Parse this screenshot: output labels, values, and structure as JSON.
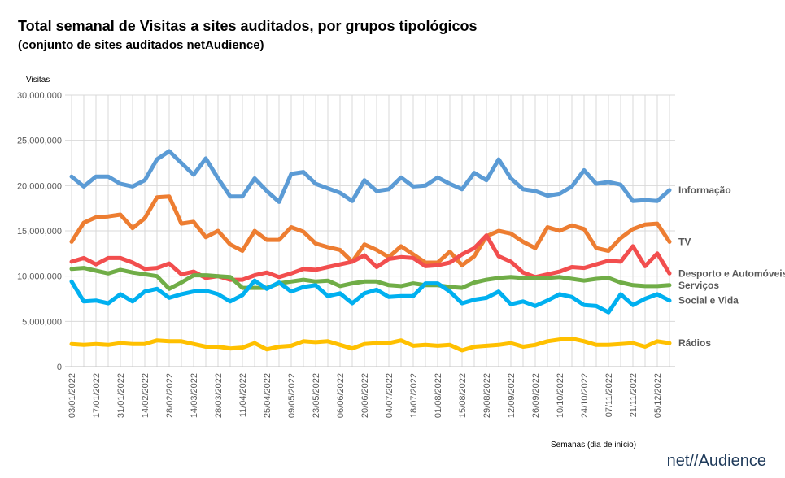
{
  "chart_data": {
    "type": "line",
    "title": "Total semanal de Visitas a sites auditados, por grupos tipológicos",
    "subtitle": "(conjunto de sites auditados netAudience)",
    "y_label": "Visitas",
    "x_label": "Semanas  (dia de início)",
    "categories": [
      "03/01/2022",
      null,
      "17/01/2022",
      null,
      "31/01/2022",
      null,
      "14/02/2022",
      null,
      "28/02/2022",
      null,
      "14/03/2022",
      null,
      "28/03/2022",
      null,
      "11/04/2022",
      null,
      "25/04/2022",
      null,
      "09/05/2022",
      null,
      "23/05/2022",
      null,
      "06/06/2022",
      null,
      "20/06/2022",
      null,
      "04/07/2022",
      null,
      "18/07/2022",
      null,
      "01/08/2022",
      null,
      "15/08/2022",
      null,
      "29/08/2022",
      null,
      "12/09/2022",
      null,
      "26/09/2022",
      null,
      "10/10/2022",
      null,
      "24/10/2022",
      null,
      "07/11/2022",
      null,
      "21/11/2022",
      null,
      "05/12/2022",
      null
    ],
    "ylim": [
      0,
      30000000
    ],
    "yticks": [
      0,
      {
        "value": 5000000,
        "label": "5,000,000"
      },
      {
        "value": 10000000,
        "label": "10,000,000"
      },
      {
        "value": 15000000,
        "label": "15,000,000"
      },
      {
        "value": 20000000,
        "label": "20,000,000"
      },
      {
        "value": 25000000,
        "label": "25,000,000"
      },
      {
        "value": 30000000,
        "label": "30,000,000"
      }
    ],
    "grid": true,
    "series": [
      {
        "name": "Informação",
        "color": "#5b9bd5",
        "label_color": "#4a86c5",
        "values": [
          21000000,
          19900000,
          21000000,
          21000000,
          20200000,
          19900000,
          20600000,
          22900000,
          23800000,
          22500000,
          21200000,
          23000000,
          20800000,
          18800000,
          18800000,
          20800000,
          19400000,
          18200000,
          21300000,
          21500000,
          20200000,
          19700000,
          19200000,
          18300000,
          20600000,
          19400000,
          19600000,
          20900000,
          19900000,
          20000000,
          20900000,
          20200000,
          19600000,
          21400000,
          20600000,
          22900000,
          20800000,
          19600000,
          19400000,
          18900000,
          19100000,
          19900000,
          21700000,
          20200000,
          20400000,
          20100000,
          18300000,
          18400000,
          18300000,
          19500000
        ]
      },
      {
        "name": "TV",
        "color": "#ed7d31",
        "label_color": "#d9692a",
        "values": [
          13800000,
          15900000,
          16500000,
          16600000,
          16800000,
          15300000,
          16400000,
          18700000,
          18800000,
          15800000,
          16000000,
          14300000,
          15000000,
          13500000,
          12800000,
          15000000,
          14000000,
          14000000,
          15400000,
          14900000,
          13600000,
          13200000,
          12900000,
          11600000,
          13500000,
          12900000,
          12100000,
          13300000,
          12400000,
          11500000,
          11500000,
          12700000,
          11200000,
          12200000,
          14400000,
          15000000,
          14700000,
          13800000,
          13100000,
          15400000,
          15000000,
          15600000,
          15200000,
          13100000,
          12800000,
          14200000,
          15200000,
          15700000,
          15800000,
          13800000
        ]
      },
      {
        "name": "Desporto e Automóveis",
        "color": "#f24e4e",
        "label_color": "#e3141c",
        "values": [
          11600000,
          12000000,
          11300000,
          12000000,
          12000000,
          11500000,
          10800000,
          10900000,
          11400000,
          10200000,
          10500000,
          9800000,
          10000000,
          9600000,
          9600000,
          10100000,
          10400000,
          9900000,
          10300000,
          10800000,
          10700000,
          11000000,
          11300000,
          11600000,
          12300000,
          11000000,
          11900000,
          12100000,
          12000000,
          11100000,
          11200000,
          11500000,
          12400000,
          13100000,
          14500000,
          12200000,
          11600000,
          10400000,
          9900000,
          10200000,
          10500000,
          11000000,
          10900000,
          11300000,
          11700000,
          11600000,
          13300000,
          11100000,
          12500000,
          10300000
        ]
      },
      {
        "name": "Serviços",
        "color": "#70ad47",
        "label_color": "#5f9e37",
        "values": [
          10800000,
          10900000,
          10600000,
          10300000,
          10700000,
          10400000,
          10200000,
          10000000,
          8600000,
          9300000,
          10100000,
          10100000,
          10000000,
          9900000,
          8700000,
          8700000,
          8700000,
          9200000,
          9400000,
          9600000,
          9400000,
          9500000,
          8900000,
          9200000,
          9400000,
          9400000,
          9000000,
          8900000,
          9200000,
          9000000,
          9000000,
          8800000,
          8700000,
          9300000,
          9600000,
          9800000,
          9900000,
          9800000,
          9800000,
          9800000,
          9900000,
          9700000,
          9500000,
          9700000,
          9800000,
          9300000,
          9000000,
          8900000,
          8900000,
          9000000
        ]
      },
      {
        "name": "Social e Vida",
        "color": "#00b0f0",
        "label_color": "#10a6dd",
        "values": [
          9400000,
          7200000,
          7300000,
          7000000,
          8000000,
          7200000,
          8300000,
          8600000,
          7600000,
          8000000,
          8300000,
          8400000,
          8000000,
          7200000,
          7900000,
          9500000,
          8600000,
          9300000,
          8300000,
          8800000,
          9000000,
          7800000,
          8100000,
          7000000,
          8100000,
          8500000,
          7700000,
          7800000,
          7800000,
          9200000,
          9200000,
          8300000,
          7000000,
          7400000,
          7600000,
          8300000,
          6900000,
          7200000,
          6700000,
          7300000,
          8000000,
          7700000,
          6800000,
          6700000,
          6000000,
          8000000,
          6800000,
          7500000,
          8000000,
          7300000
        ]
      },
      {
        "name": "Rádios",
        "color": "#ffc000",
        "label_color": "#f2b800",
        "values": [
          2500000,
          2400000,
          2500000,
          2400000,
          2600000,
          2500000,
          2500000,
          2900000,
          2800000,
          2800000,
          2500000,
          2200000,
          2200000,
          2000000,
          2100000,
          2600000,
          1900000,
          2200000,
          2300000,
          2800000,
          2700000,
          2800000,
          2400000,
          2000000,
          2500000,
          2600000,
          2600000,
          2900000,
          2300000,
          2400000,
          2300000,
          2400000,
          1800000,
          2200000,
          2300000,
          2400000,
          2600000,
          2200000,
          2400000,
          2800000,
          3000000,
          3100000,
          2800000,
          2400000,
          2400000,
          2500000,
          2600000,
          2200000,
          2800000,
          2600000
        ]
      }
    ]
  },
  "logo": "net//Audience"
}
